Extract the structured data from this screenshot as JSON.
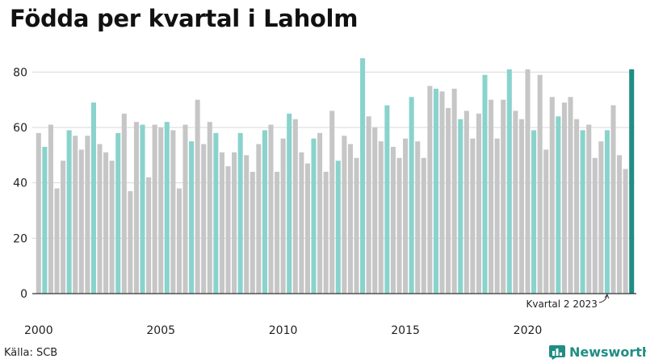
{
  "header": {
    "title": "Födda per kvartal i Laholm"
  },
  "footer": {
    "source": "Källa: SCB",
    "brand": "Newsworthy"
  },
  "colors": {
    "default_bar": "#c6c6c6",
    "q2_bar": "#8ad3cd",
    "latest_bar": "#1f8e84",
    "grid": "#d9d9d9",
    "axis": "#333333"
  },
  "chart_data": {
    "type": "bar",
    "title": "Födda per kvartal i Laholm",
    "xlabel": "",
    "ylabel": "",
    "ylim": [
      0,
      90
    ],
    "yticks": [
      0,
      20,
      40,
      60,
      80
    ],
    "xtick_labels": [
      "2000",
      "2005",
      "2010",
      "2015",
      "2020"
    ],
    "highlight_quarter": 2,
    "start_year": 2000,
    "annotation": {
      "text": "Kvartal 2 2023",
      "target": "2023 Q2"
    },
    "values": [
      58,
      53,
      61,
      38,
      48,
      59,
      57,
      52,
      57,
      69,
      54,
      51,
      48,
      58,
      65,
      37,
      62,
      61,
      42,
      61,
      60,
      62,
      59,
      38,
      61,
      55,
      70,
      54,
      62,
      58,
      51,
      46,
      51,
      58,
      50,
      44,
      54,
      59,
      61,
      44,
      56,
      65,
      63,
      51,
      47,
      56,
      58,
      44,
      66,
      48,
      57,
      54,
      49,
      85,
      64,
      60,
      55,
      68,
      53,
      49,
      56,
      71,
      55,
      49,
      75,
      74,
      73,
      67,
      74,
      63,
      66,
      56,
      65,
      79,
      70,
      56,
      70,
      81,
      66,
      63,
      81,
      59,
      79,
      52,
      71,
      64,
      69,
      71,
      63,
      59,
      61,
      49,
      55,
      59,
      68,
      50,
      45,
      81
    ]
  }
}
